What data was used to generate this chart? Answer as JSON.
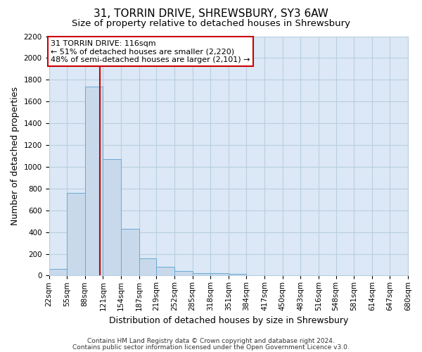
{
  "title": "31, TORRIN DRIVE, SHREWSBURY, SY3 6AW",
  "subtitle": "Size of property relative to detached houses in Shrewsbury",
  "xlabel": "Distribution of detached houses by size in Shrewsbury",
  "ylabel": "Number of detached properties",
  "bar_values": [
    60,
    760,
    1740,
    1070,
    430,
    155,
    80,
    40,
    25,
    20,
    15,
    0,
    0,
    0,
    0,
    0,
    0,
    0,
    0
  ],
  "bin_edges": [
    22,
    55,
    88,
    121,
    154,
    187,
    219,
    252,
    285,
    318,
    351,
    384,
    417,
    450,
    483,
    516,
    548,
    581,
    614,
    647,
    680
  ],
  "tick_labels": [
    "22sqm",
    "55sqm",
    "88sqm",
    "121sqm",
    "154sqm",
    "187sqm",
    "219sqm",
    "252sqm",
    "285sqm",
    "318sqm",
    "351sqm",
    "384sqm",
    "417sqm",
    "450sqm",
    "483sqm",
    "516sqm",
    "548sqm",
    "581sqm",
    "614sqm",
    "647sqm",
    "680sqm"
  ],
  "bar_color": "#c8d9ec",
  "bar_edge_color": "#6aaad4",
  "vline_x": 116,
  "vline_color": "#cc0000",
  "ylim": [
    0,
    2200
  ],
  "yticks": [
    0,
    200,
    400,
    600,
    800,
    1000,
    1200,
    1400,
    1600,
    1800,
    2000,
    2200
  ],
  "annotation_title": "31 TORRIN DRIVE: 116sqm",
  "annotation_line1": "← 51% of detached houses are smaller (2,220)",
  "annotation_line2": "48% of semi-detached houses are larger (2,101) →",
  "annotation_box_color": "#ffffff",
  "annotation_box_edge": "#cc0000",
  "footer1": "Contains HM Land Registry data © Crown copyright and database right 2024.",
  "footer2": "Contains public sector information licensed under the Open Government Licence v3.0.",
  "background_color": "#ffffff",
  "plot_bg_color": "#dce8f5",
  "grid_color": "#b8cfe0",
  "title_fontsize": 11,
  "subtitle_fontsize": 9.5,
  "axis_label_fontsize": 9,
  "tick_fontsize": 7.5,
  "annotation_fontsize": 8,
  "footer_fontsize": 6.5
}
